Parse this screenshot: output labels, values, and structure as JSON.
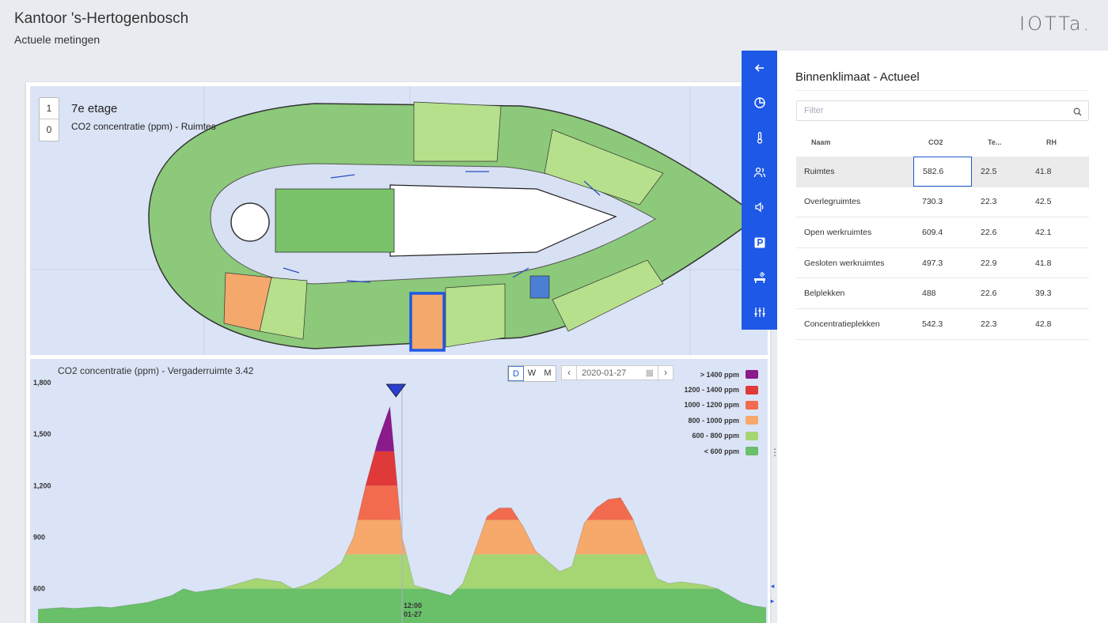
{
  "header": {
    "title": "Kantoor 's-Hertogenbosch",
    "subtitle": "Actuele metingen",
    "logo": "IOTTa."
  },
  "floorplan": {
    "floor_buttons": [
      "1",
      "0"
    ],
    "floor_name": "7e etage",
    "metric": "CO2 concentratie (ppm) - Ruimtes",
    "room_colors": {
      "good": "#7ac36a",
      "ok": "#b6e08c",
      "warn": "#f5a86c",
      "selected_outline": "#1e58e6"
    }
  },
  "chart": {
    "title": "CO2 concentratie (ppm) - Vergaderruimte 3.42",
    "range_buttons": [
      "D",
      "W",
      "M"
    ],
    "active_range": "D",
    "date": "2020-01-27",
    "prev_icon": "chevron-left-icon",
    "next_icon": "chevron-right-icon",
    "calendar_icon": "calendar-icon",
    "cursor_label_time": "12:00",
    "cursor_label_date": "01-27",
    "legend": [
      {
        "label": "> 1400 ppm",
        "color": "#8b1a8b"
      },
      {
        "label": "1200 - 1400 ppm",
        "color": "#e0393a"
      },
      {
        "label": "1000 - 1200 ppm",
        "color": "#f26b4f"
      },
      {
        "label": "800 - 1000 ppm",
        "color": "#f7a86b"
      },
      {
        "label": "600 - 800 ppm",
        "color": "#a5d673"
      },
      {
        "label": "< 600 ppm",
        "color": "#6abf69"
      }
    ]
  },
  "chart_data": {
    "type": "area",
    "title": "CO2 concentratie (ppm) - Vergaderruimte 3.42",
    "ylim": [
      400,
      1800
    ],
    "y_ticks": [
      "1,800",
      "1,500",
      "1,200",
      "900",
      "600"
    ],
    "y_tick_values": [
      1800,
      1500,
      1200,
      900,
      600
    ],
    "x": [
      0,
      0.4,
      0.8,
      1.2,
      1.6,
      2.0,
      2.4,
      2.8,
      3.2,
      3.6,
      4.0,
      4.4,
      4.8,
      5.2,
      5.6,
      6.0,
      6.4,
      6.8,
      7.2,
      7.6,
      8.0,
      8.4,
      8.8,
      9.2,
      9.6,
      10.0,
      10.4,
      10.8,
      11.2,
      11.6,
      12.0,
      12.4,
      12.8,
      13.2,
      13.6,
      14.0,
      14.4,
      14.8,
      15.2,
      15.6,
      16.0,
      16.4,
      16.8,
      17.2,
      17.6,
      18.0,
      18.4,
      18.8,
      19.2,
      19.6,
      20.0,
      20.4,
      20.8,
      21.2,
      21.6,
      22.0,
      22.4,
      22.8,
      23.2,
      23.6,
      24.0
    ],
    "series": [
      {
        "values": [
          480,
          485,
          490,
          485,
          490,
          495,
          490,
          500,
          510,
          520,
          540,
          560,
          600,
          580,
          590,
          600,
          620,
          640,
          660,
          650,
          640,
          600,
          620,
          650,
          700,
          750,
          900,
          1200,
          1460,
          1660,
          900,
          620,
          600,
          580,
          560,
          630,
          820,
          1020,
          1070,
          1070,
          960,
          820,
          760,
          700,
          730,
          980,
          1070,
          1120,
          1130,
          1010,
          830,
          660,
          630,
          640,
          630,
          620,
          600,
          560,
          520,
          500,
          490
        ]
      }
    ],
    "cursor_x": 12.0,
    "marker_x": 11.8,
    "thresholds": [
      600,
      800,
      1000,
      1200,
      1400
    ]
  },
  "toolbar": {
    "buttons": [
      {
        "name": "back-arrow-icon"
      },
      {
        "name": "pie-chart-icon"
      },
      {
        "name": "thermometer-icon"
      },
      {
        "name": "people-icon"
      },
      {
        "name": "speaker-icon"
      },
      {
        "name": "parking-icon"
      },
      {
        "name": "desk-occupancy-icon"
      },
      {
        "name": "sliders-icon"
      }
    ]
  },
  "panel": {
    "title": "Binnenklimaat - Actueel",
    "filter_placeholder": "Filter",
    "columns": [
      "Naam",
      "CO2",
      "Te...",
      "RH"
    ],
    "rows": [
      {
        "name": "Ruimtes",
        "co2": "582.6",
        "temp": "22.5",
        "rh": "41.8"
      },
      {
        "name": "Overlegruimtes",
        "co2": "730.3",
        "temp": "22.3",
        "rh": "42.5"
      },
      {
        "name": "Open werkruimtes",
        "co2": "609.4",
        "temp": "22.6",
        "rh": "42.1"
      },
      {
        "name": "Gesloten werkruimtes",
        "co2": "497.3",
        "temp": "22.9",
        "rh": "41.8"
      },
      {
        "name": "Belplekken",
        "co2": "488",
        "temp": "22.6",
        "rh": "39.3"
      },
      {
        "name": "Concentratieplekken",
        "co2": "542.3",
        "temp": "22.3",
        "rh": "42.8"
      }
    ]
  }
}
